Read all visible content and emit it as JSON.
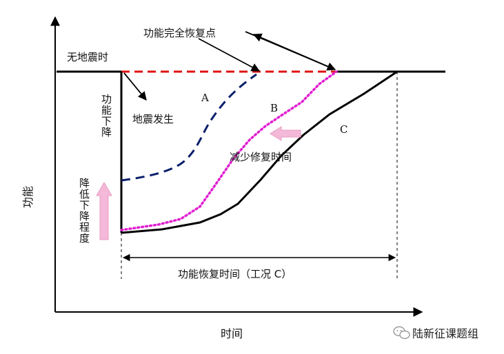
{
  "diagram": {
    "y_axis_label": "功能",
    "x_axis_label": "时间",
    "labels": {
      "no_earthquake": "无地震时",
      "full_recovery_point": "功能完全恢复点",
      "earthquake_occurs": "地震发生",
      "function_drop": "功能下降",
      "reduce_drop_degree": "降低下降程度",
      "reduce_repair_time": "减少修复时间",
      "recovery_time_case_c": "功能恢复时间（工况 C）"
    },
    "curves": [
      {
        "id": "A",
        "label": "A",
        "color": "#0a1f6b",
        "style": "dashed"
      },
      {
        "id": "B",
        "label": "B",
        "color": "#e020d0",
        "style": "dotted"
      },
      {
        "id": "C",
        "label": "C",
        "color": "#000000",
        "style": "solid"
      }
    ],
    "baseline_color": "#e01010",
    "hint_arrow_color": "#f4b8d8"
  },
  "watermark": {
    "text": "陆新征课题组",
    "icon": "wechat-icon"
  }
}
